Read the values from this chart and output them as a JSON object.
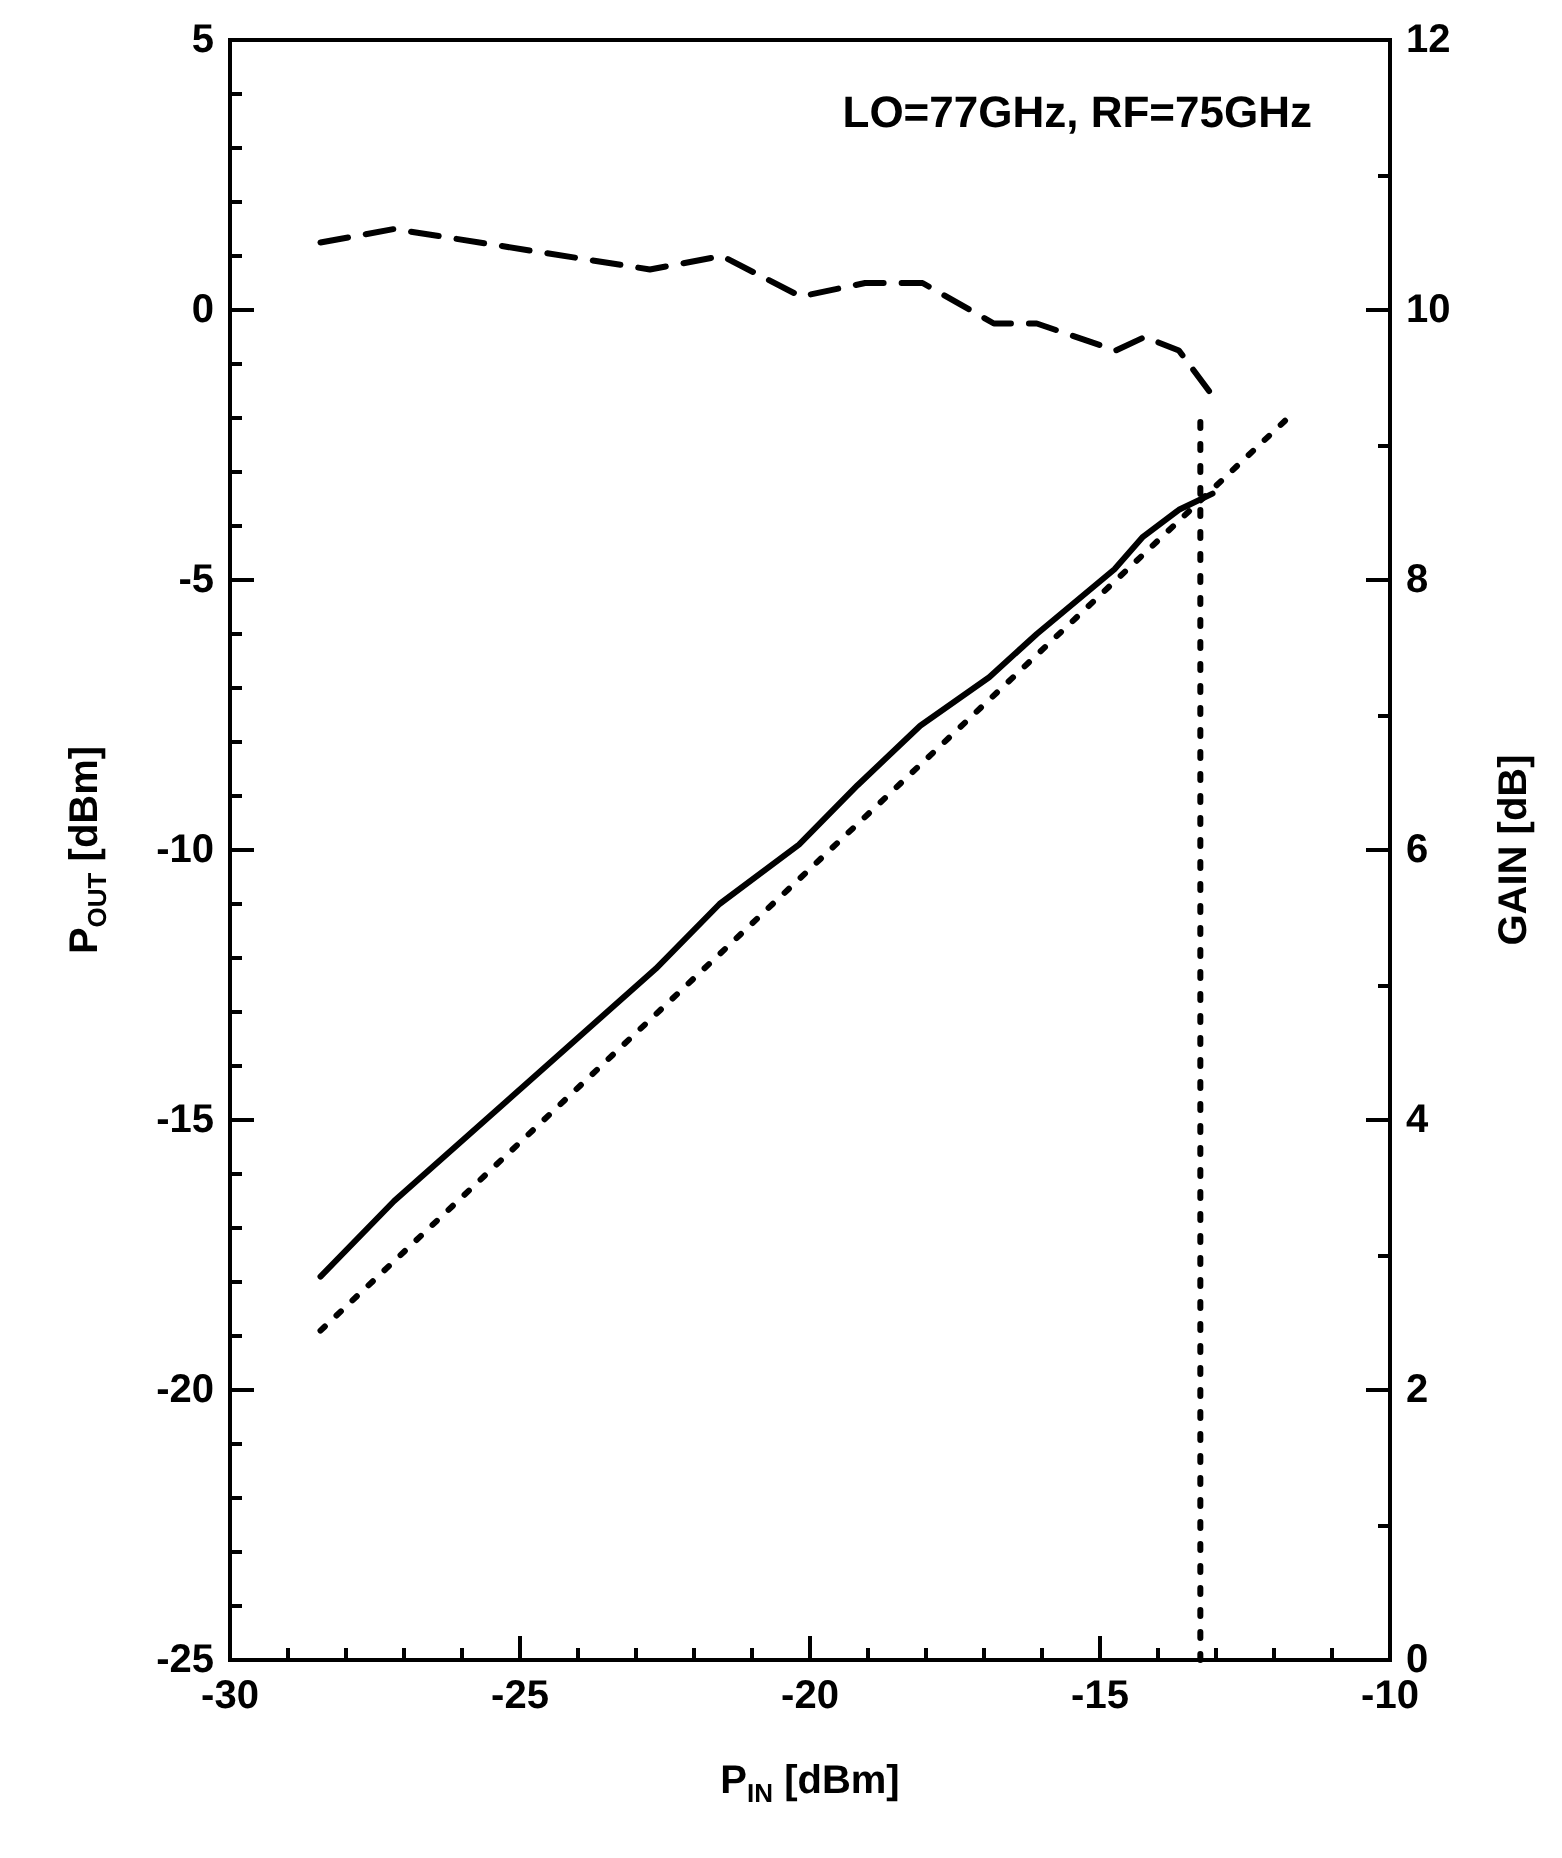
{
  "chart_data": {
    "type": "line",
    "xlabel": "P$_{IN}$ [dBm]",
    "ylabel": "P$_{OUT}$ [dBm]",
    "y2label": "GAIN [dB]",
    "annotations": [
      "LO=77GHz, RF=75GHz"
    ],
    "xlim": [
      -30,
      -10
    ],
    "xticks": [
      -30,
      -25,
      -20,
      -15,
      -10
    ],
    "ylim": [
      -25,
      5
    ],
    "yticks": [
      -25,
      -20,
      -15,
      -10,
      -5,
      0,
      5
    ],
    "y2lim": [
      0,
      12
    ],
    "y2ticks": [
      0,
      2,
      4,
      6,
      8,
      10,
      12
    ],
    "grid": false,
    "marker": "none",
    "series": [
      {
        "color": "#000000",
        "line_style": "solid",
        "x": [
          -28.44,
          -27.17,
          -22.66,
          -21.56,
          -20.19,
          -19.18,
          -18.1,
          -16.91,
          -16.09,
          -14.75,
          -14.26,
          -13.64,
          -13.06
        ],
        "values": [
          -17.9,
          -16.5,
          -12.2,
          -11.0,
          -9.9,
          -8.8,
          -7.7,
          -6.8,
          -6.0,
          -4.8,
          -4.2,
          -3.7,
          -3.4
        ]
      },
      {
        "color": "#000000",
        "line_style": "dotted",
        "x": [
          -28.44,
          -11.76
        ],
        "values": [
          -18.9,
          -2.0
        ]
      },
      {
        "color": "#000000",
        "line_style": "dotted",
        "x": [
          -13.27,
          -13.27
        ],
        "values": [
          -25,
          -2.0
        ]
      },
      {
        "color": "#000000",
        "line_style": "dashed",
        "axis": "y2",
        "x": [
          -28.44,
          -27.17,
          -22.76,
          -21.52,
          -20.16,
          -19.05,
          -18.06,
          -16.83,
          -16.09,
          -14.73,
          -14.23,
          -13.64,
          -13.12
        ],
        "values": [
          10.5,
          10.6,
          10.3,
          10.4,
          10.1,
          10.2,
          10.2,
          9.9,
          9.9,
          9.7,
          9.8,
          9.7,
          9.4
        ]
      }
    ]
  }
}
